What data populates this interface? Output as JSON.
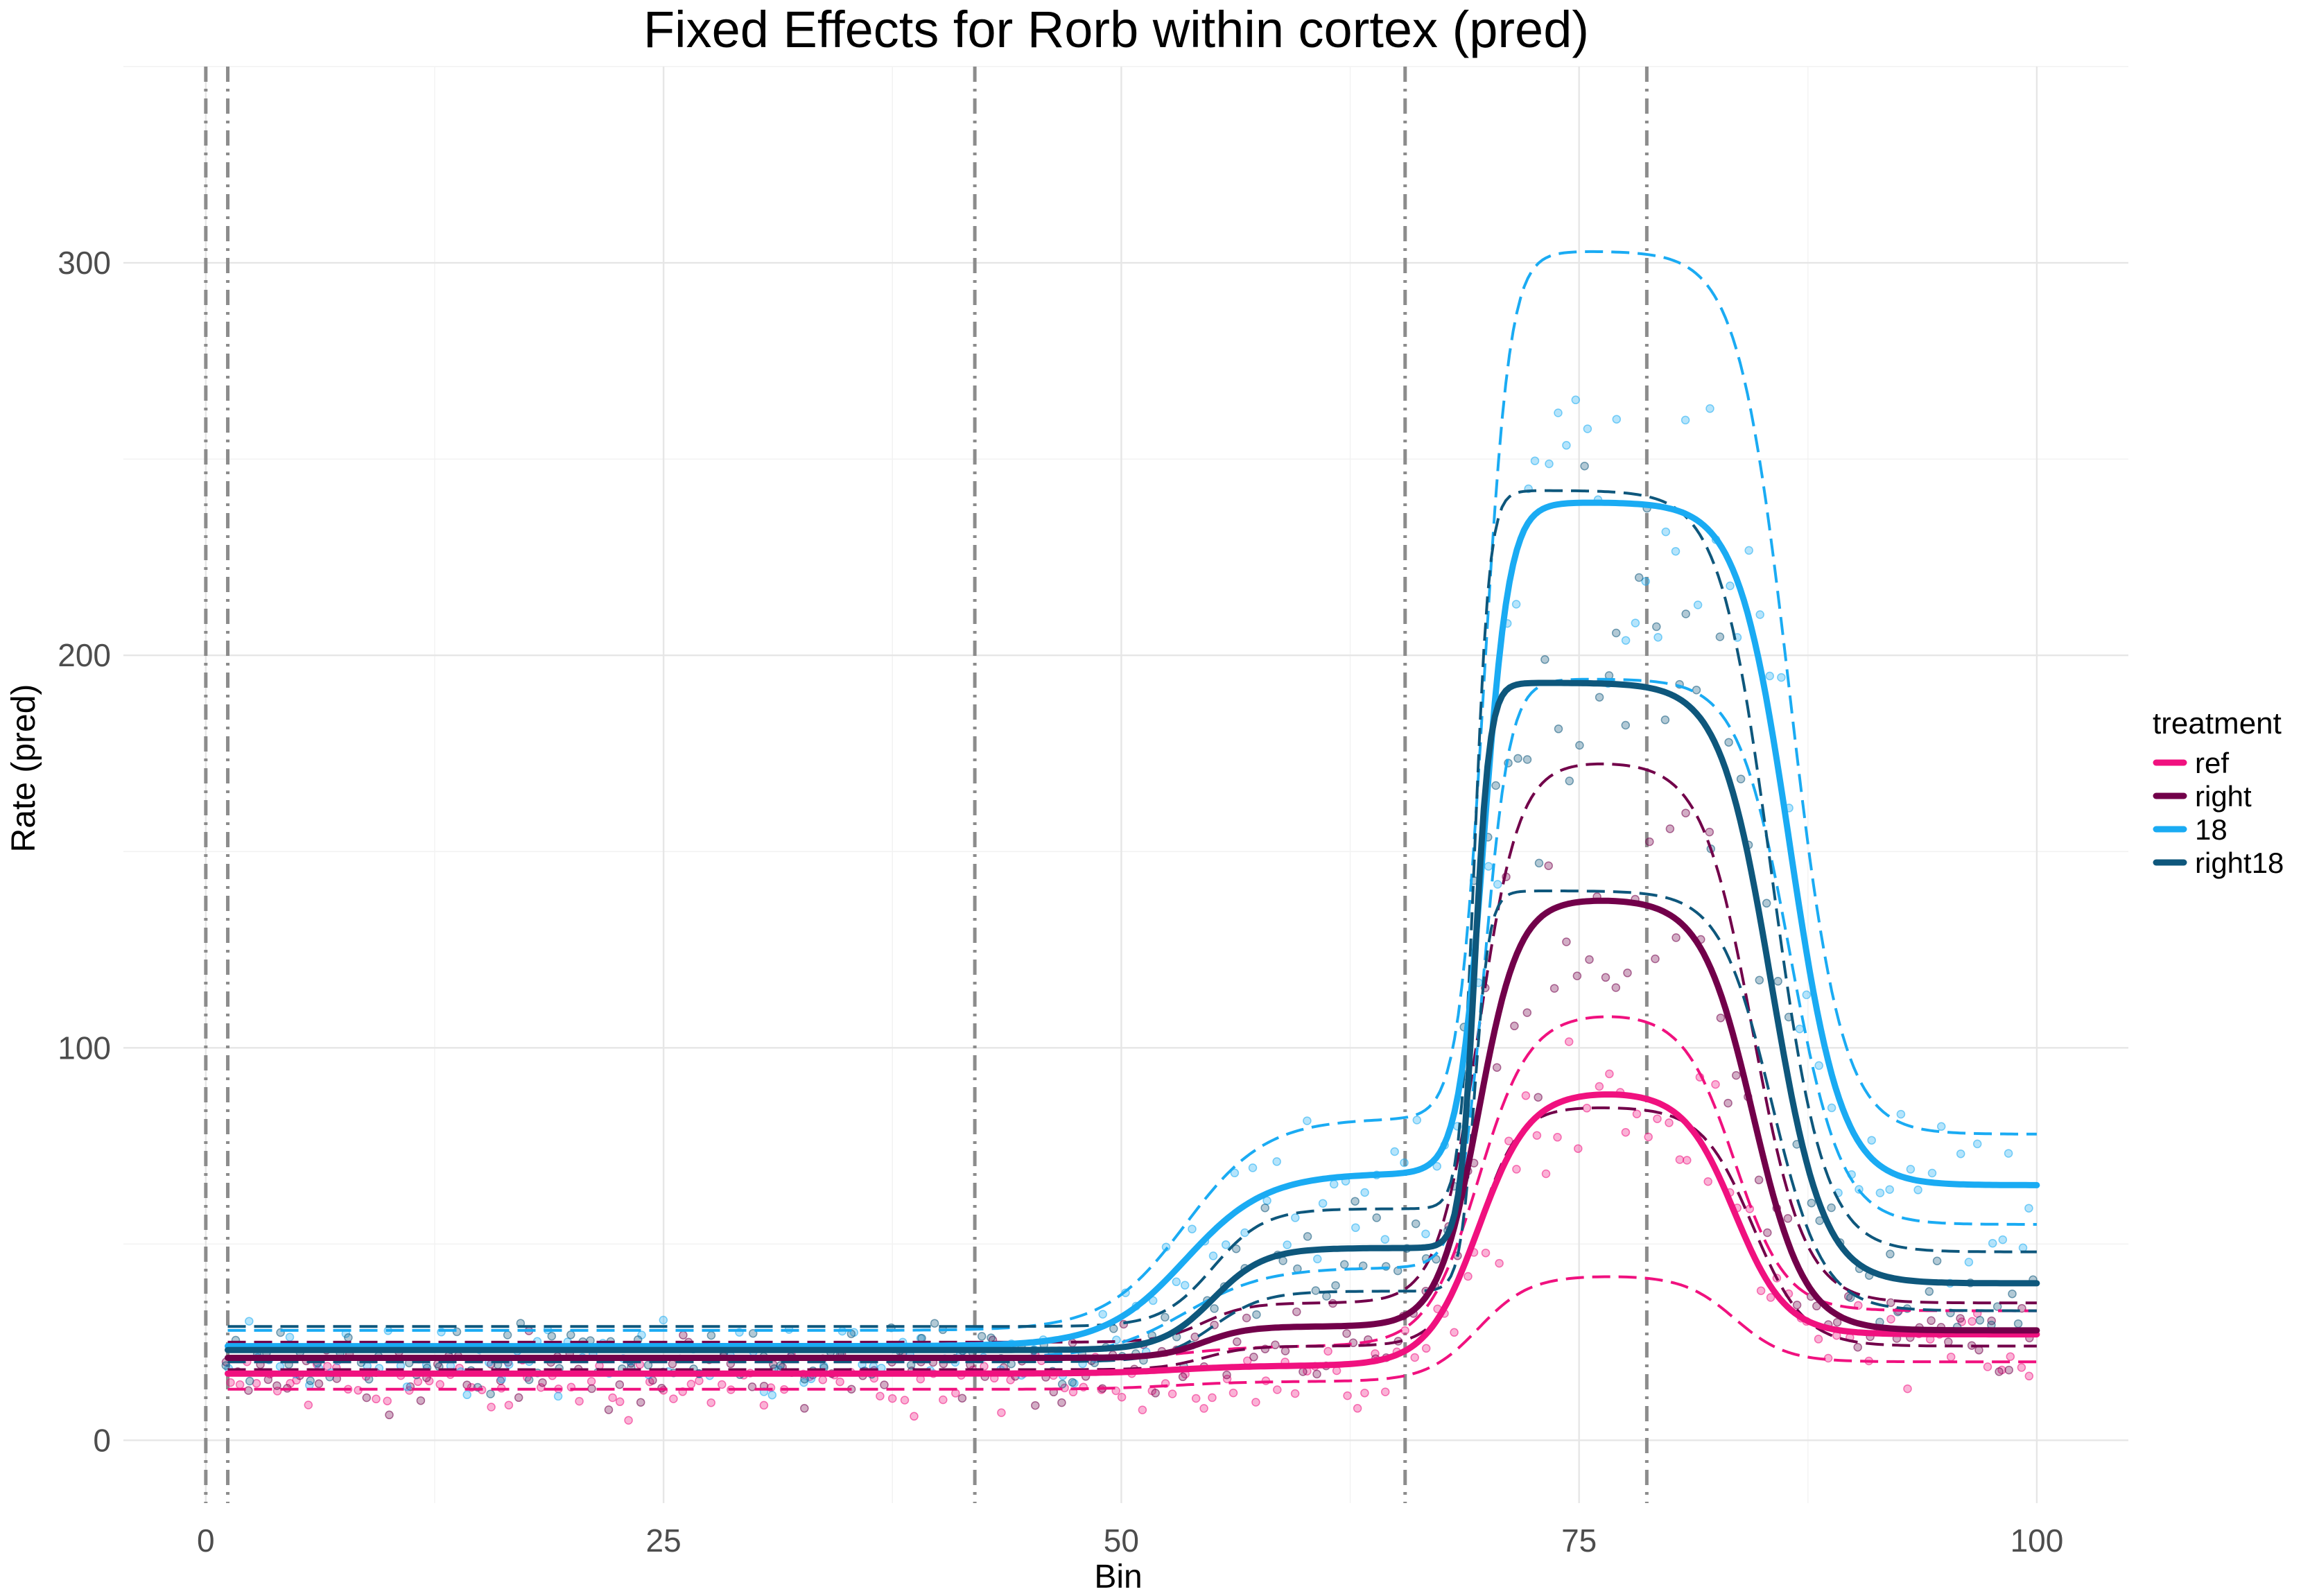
{
  "chart_data": {
    "type": "line",
    "title": "Fixed Effects for Rorb within cortex (pred)",
    "xlabel": "Bin",
    "ylabel": "Rate (pred)",
    "xlim": [
      -4.5,
      105
    ],
    "ylim": [
      -16,
      350
    ],
    "x_ticks": [
      0,
      25,
      50,
      75,
      100
    ],
    "x_tick_labels": [
      "0",
      "25",
      "50",
      "75",
      "100"
    ],
    "y_ticks": [
      0,
      100,
      200,
      300
    ],
    "y_tick_labels": [
      "0",
      "100",
      "200",
      "300"
    ],
    "grid": true,
    "legend": {
      "title": "treatment",
      "position": "right"
    },
    "vertical_lines": [
      0,
      1.2,
      42,
      65.5,
      78.7
    ],
    "series": [
      {
        "name": "ref",
        "color": "#F0117F",
        "baseline": 17,
        "step1": {
          "center": 53,
          "height": 2,
          "width": 2
        },
        "step2": {
          "center": 69.5,
          "height": 70,
          "width": 1.4
        },
        "fall": {
          "center": 83.5,
          "width": 1.4
        },
        "tail": 27,
        "band_lower": [
          13,
          15,
          42,
          20
        ],
        "band_upper": [
          20,
          24,
          109,
          33
        ]
      },
      {
        "name": "right",
        "color": "#72004A",
        "baseline": 21,
        "step1": {
          "center": 54.5,
          "height": 8,
          "width": 1.2
        },
        "step2": {
          "center": 69.5,
          "height": 109,
          "width": 1.1
        },
        "fall": {
          "center": 84.5,
          "width": 1.4
        },
        "tail": 28,
        "band_lower": [
          18,
          24,
          85,
          24
        ],
        "band_upper": [
          25,
          35,
          173,
          35
        ]
      },
      {
        "name": "18",
        "color": "#1AABF3",
        "baseline": 24,
        "step1": {
          "center": 53.5,
          "height": 44,
          "width": 2.2
        },
        "step2": {
          "center": 69.8,
          "height": 171,
          "width": 0.7
        },
        "fall": {
          "center": 86.5,
          "width": 1.4
        },
        "tail": 65,
        "band_lower": [
          21,
          44,
          194,
          55
        ],
        "band_upper": [
          28,
          82,
          303,
          78
        ]
      },
      {
        "name": "right18",
        "color": "#0E577C",
        "baseline": 23,
        "step1": {
          "center": 55,
          "height": 26,
          "width": 1.4
        },
        "step2": {
          "center": 69.3,
          "height": 144,
          "width": 0.4
        },
        "fall": {
          "center": 85.5,
          "width": 1.4
        },
        "tail": 40,
        "band_lower": [
          20,
          38,
          140,
          33
        ],
        "band_upper": [
          29,
          59,
          242,
          48
        ]
      }
    ]
  }
}
